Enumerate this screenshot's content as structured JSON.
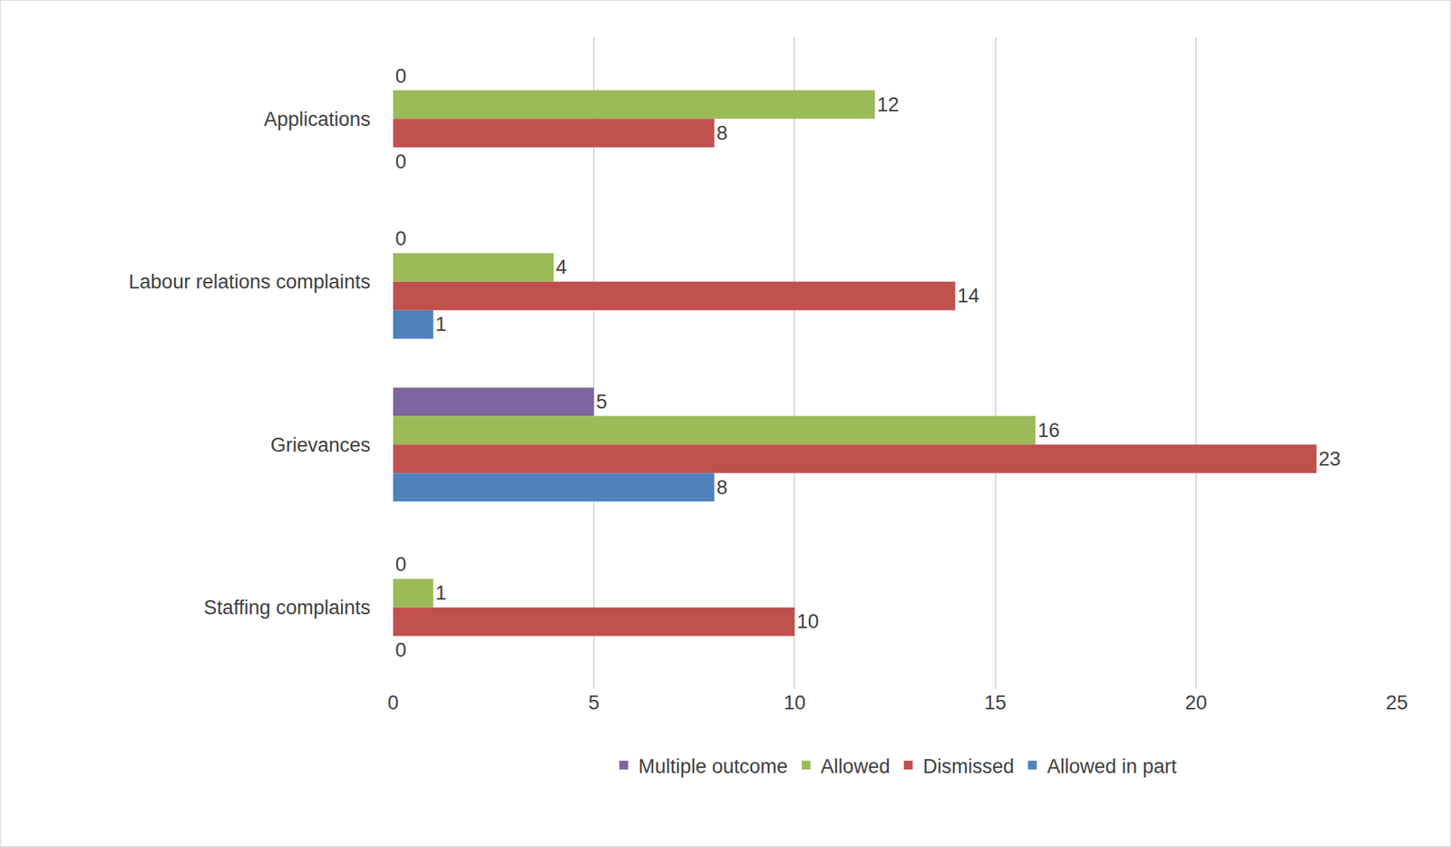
{
  "chart_data": {
    "type": "bar",
    "orientation": "horizontal",
    "categories": [
      "Applications",
      "Labour relations complaints",
      "Grievances",
      "Staffing complaints"
    ],
    "series": [
      {
        "name": "Multiple outcome",
        "color": "#8064a2",
        "values": [
          0,
          0,
          5,
          0
        ]
      },
      {
        "name": "Allowed",
        "color": "#9bbb59",
        "values": [
          12,
          4,
          16,
          1
        ]
      },
      {
        "name": "Dismissed",
        "color": "#c0504d",
        "values": [
          8,
          14,
          23,
          10
        ]
      },
      {
        "name": "Allowed in part",
        "color": "#4f81bd",
        "values": [
          0,
          1,
          8,
          0
        ]
      }
    ],
    "xlim": [
      0,
      25
    ],
    "xticks": [
      0,
      5,
      10,
      15,
      20,
      25
    ],
    "grid": true,
    "legend": "bottom",
    "data_labels": true
  }
}
